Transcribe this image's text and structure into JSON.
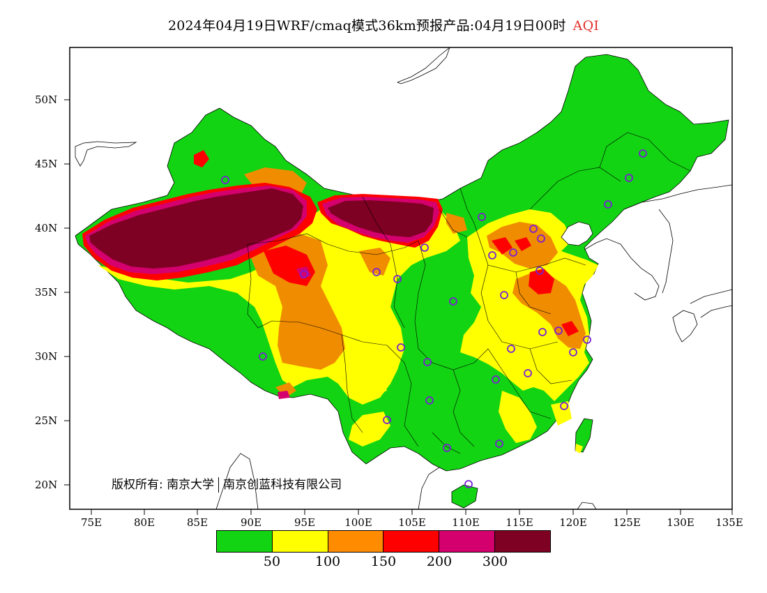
{
  "title": {
    "text": "2024年04月19日WRF/cmaq模式36km预报产品:04月19日00时",
    "variable": "AQI",
    "variable_color": "#e0302a"
  },
  "copyright": {
    "prefix": "版权所有:",
    "org1": "南京大学",
    "org2": "南京创蓝科技有限公司"
  },
  "axes": {
    "lat_labels": [
      "50N",
      "45N",
      "40N",
      "35N",
      "30N",
      "25N",
      "20N"
    ],
    "lon_labels": [
      "75E",
      "80E",
      "85E",
      "90E",
      "95E",
      "100E",
      "105E",
      "110E",
      "115E",
      "120E",
      "125E",
      "130E",
      "135E"
    ]
  },
  "legend": {
    "colors": [
      "#12d412",
      "#ffff00",
      "#ff8c00",
      "#ff0000",
      "#d4006e",
      "#7e0023"
    ],
    "labels": [
      "50",
      "100",
      "150",
      "200",
      "300"
    ]
  },
  "palette": {
    "green": "#12d412",
    "yellow": "#ffff00",
    "orange": "#f08c00",
    "red": "#ff0000",
    "magenta": "#d4006e",
    "maroon": "#7e0023",
    "station": "#7a1fd6"
  }
}
